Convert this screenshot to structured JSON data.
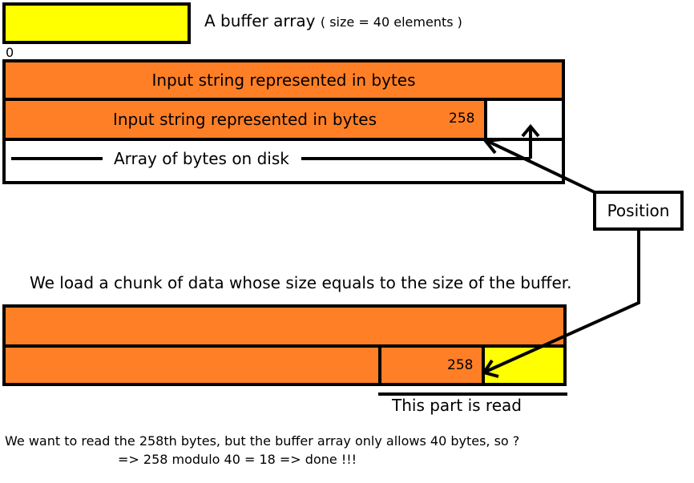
{
  "legend": {
    "label": "A buffer array",
    "size_note": "( size = 40 elements )"
  },
  "top": {
    "index_zero": "0",
    "row1_text": "Input string represented in bytes",
    "row2_text": "Input string represented in bytes",
    "row2_marker": "258",
    "row3_text": "Array of bytes on disk"
  },
  "position_label": "Position",
  "middle_caption": "We load a chunk of data whose size equals to the size of the buffer.",
  "bottom": {
    "marker": "258",
    "read_label": "This part is read"
  },
  "footer": {
    "line1": "We want to read the 258th bytes, but the buffer array only allows 40 bytes, so ?",
    "line2": "=> 258 modulo 40 = 18 => done !!!"
  },
  "colors": {
    "orange": "#ff7f27",
    "yellow": "#ffff00",
    "stroke": "#000000"
  }
}
